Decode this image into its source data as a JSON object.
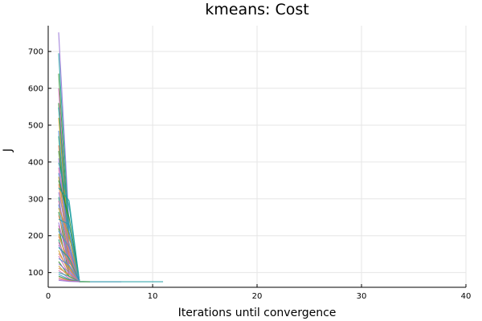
{
  "chart_data": {
    "type": "line",
    "title": "kmeans: Cost",
    "xlabel": "Iterations until convergence",
    "ylabel": "J",
    "xlim": [
      0,
      40
    ],
    "ylim": [
      60,
      770
    ],
    "xticks": [
      0,
      10,
      20,
      30,
      40
    ],
    "yticks": [
      100,
      200,
      300,
      400,
      500,
      600,
      700
    ],
    "grid": true,
    "legend": "none",
    "converged_cost": 75,
    "series": [
      {
        "color": "#9b7ad8",
        "x": [
          1,
          2,
          3,
          4,
          5,
          6,
          7
        ],
        "y": [
          752,
          230,
          75,
          75,
          75,
          75,
          75
        ]
      },
      {
        "color": "#27a0a6",
        "x": [
          1,
          2,
          3,
          4,
          5,
          6,
          7,
          8,
          9,
          10,
          11
        ],
        "y": [
          695,
          210,
          76,
          75,
          75,
          75,
          75,
          75,
          75,
          75,
          75
        ]
      },
      {
        "color": "#3c9a3c",
        "x": [
          1,
          2,
          3,
          4
        ],
        "y": [
          640,
          180,
          75,
          75
        ]
      },
      {
        "color": "#d46ab0",
        "x": [
          1,
          2,
          3
        ],
        "y": [
          600,
          150,
          75
        ]
      },
      {
        "color": "#2f8f2f",
        "x": [
          1,
          2,
          3
        ],
        "y": [
          560,
          120,
          75
        ]
      },
      {
        "color": "#1aa0a0",
        "x": [
          1,
          2,
          3
        ],
        "y": [
          548,
          200,
          75
        ]
      },
      {
        "color": "#c9a227",
        "x": [
          1,
          2,
          3
        ],
        "y": [
          520,
          175,
          75
        ]
      },
      {
        "color": "#4a8fd8",
        "x": [
          1,
          2,
          3
        ],
        "y": [
          485,
          160,
          75
        ]
      },
      {
        "color": "#2aa87a",
        "x": [
          1,
          2,
          3
        ],
        "y": [
          470,
          140,
          75
        ]
      },
      {
        "color": "#e0835a",
        "x": [
          1,
          2,
          3
        ],
        "y": [
          445,
          135,
          75
        ]
      },
      {
        "color": "#3c9a3c",
        "x": [
          1,
          2,
          3
        ],
        "y": [
          430,
          200,
          75
        ]
      },
      {
        "color": "#9b7ad8",
        "x": [
          1,
          2,
          3
        ],
        "y": [
          410,
          150,
          75
        ]
      },
      {
        "color": "#27a0a6",
        "x": [
          1,
          2,
          3
        ],
        "y": [
          398,
          280,
          75
        ]
      },
      {
        "color": "#d46ab0",
        "x": [
          1,
          2,
          3
        ],
        "y": [
          385,
          130,
          75
        ]
      },
      {
        "color": "#4a8fd8",
        "x": [
          1,
          2,
          3
        ],
        "y": [
          370,
          210,
          75
        ]
      },
      {
        "color": "#c9a227",
        "x": [
          1,
          2,
          3
        ],
        "y": [
          360,
          160,
          75
        ]
      },
      {
        "color": "#2f8f2f",
        "x": [
          1,
          2,
          3
        ],
        "y": [
          350,
          250,
          75
        ]
      },
      {
        "color": "#e0835a",
        "x": [
          1,
          2,
          3
        ],
        "y": [
          340,
          140,
          75
        ]
      },
      {
        "color": "#1aa0a0",
        "x": [
          1,
          2,
          3
        ],
        "y": [
          330,
          295,
          75
        ]
      },
      {
        "color": "#9b7ad8",
        "x": [
          1,
          2,
          3
        ],
        "y": [
          318,
          180,
          75
        ]
      },
      {
        "color": "#2aa87a",
        "x": [
          1,
          2,
          3
        ],
        "y": [
          305,
          130,
          75
        ]
      },
      {
        "color": "#d46ab0",
        "x": [
          1,
          2,
          3
        ],
        "y": [
          295,
          160,
          75
        ]
      },
      {
        "color": "#4a8fd8",
        "x": [
          1,
          2,
          3
        ],
        "y": [
          285,
          120,
          75
        ]
      },
      {
        "color": "#c9a227",
        "x": [
          1,
          2,
          3
        ],
        "y": [
          275,
          200,
          75
        ]
      },
      {
        "color": "#3c9a3c",
        "x": [
          1,
          2,
          3
        ],
        "y": [
          265,
          110,
          75
        ]
      },
      {
        "color": "#e0835a",
        "x": [
          1,
          2,
          3
        ],
        "y": [
          255,
          150,
          75
        ]
      },
      {
        "color": "#27a0a6",
        "x": [
          1,
          2,
          3
        ],
        "y": [
          245,
          230,
          75
        ]
      },
      {
        "color": "#9b7ad8",
        "x": [
          1,
          2,
          3
        ],
        "y": [
          236,
          120,
          75
        ]
      },
      {
        "color": "#d46ab0",
        "x": [
          1,
          2,
          3
        ],
        "y": [
          228,
          140,
          75
        ]
      },
      {
        "color": "#2f8f2f",
        "x": [
          1,
          2,
          3
        ],
        "y": [
          220,
          100,
          75
        ]
      },
      {
        "color": "#4a8fd8",
        "x": [
          1,
          2,
          3
        ],
        "y": [
          212,
          170,
          75
        ]
      },
      {
        "color": "#c9a227",
        "x": [
          1,
          2,
          3
        ],
        "y": [
          205,
          115,
          75
        ]
      },
      {
        "color": "#e0835a",
        "x": [
          1,
          2,
          3
        ],
        "y": [
          198,
          130,
          75
        ]
      },
      {
        "color": "#2aa87a",
        "x": [
          1,
          2,
          3
        ],
        "y": [
          190,
          95,
          75
        ]
      },
      {
        "color": "#d46ab0",
        "x": [
          1,
          2,
          3
        ],
        "y": [
          182,
          120,
          75
        ]
      },
      {
        "color": "#9b7ad8",
        "x": [
          1,
          2,
          3
        ],
        "y": [
          175,
          105,
          75
        ]
      },
      {
        "color": "#1aa0a0",
        "x": [
          1,
          2,
          3
        ],
        "y": [
          168,
          140,
          75
        ]
      },
      {
        "color": "#c9a227",
        "x": [
          1,
          2,
          3
        ],
        "y": [
          160,
          100,
          75
        ]
      },
      {
        "color": "#e0835a",
        "x": [
          1,
          2,
          3
        ],
        "y": [
          152,
          110,
          75
        ]
      },
      {
        "color": "#d46ab0",
        "x": [
          1,
          2,
          3
        ],
        "y": [
          145,
          95,
          75
        ]
      },
      {
        "color": "#4a8fd8",
        "x": [
          1,
          2,
          3
        ],
        "y": [
          138,
          120,
          75
        ]
      },
      {
        "color": "#2f8f2f",
        "x": [
          1,
          2,
          3
        ],
        "y": [
          130,
          90,
          75
        ]
      },
      {
        "color": "#9b7ad8",
        "x": [
          1,
          2,
          3
        ],
        "y": [
          124,
          100,
          75
        ]
      },
      {
        "color": "#c9a227",
        "x": [
          1,
          2,
          3
        ],
        "y": [
          118,
          88,
          75
        ]
      },
      {
        "color": "#e0835a",
        "x": [
          1,
          2,
          3
        ],
        "y": [
          112,
          95,
          75
        ]
      },
      {
        "color": "#d46ab0",
        "x": [
          1,
          2,
          3
        ],
        "y": [
          106,
          84,
          75
        ]
      },
      {
        "color": "#27a0a6",
        "x": [
          1,
          2,
          3
        ],
        "y": [
          100,
          90,
          75
        ]
      },
      {
        "color": "#4a8fd8",
        "x": [
          1,
          2,
          3
        ],
        "y": [
          95,
          82,
          75
        ]
      },
      {
        "color": "#3c9a3c",
        "x": [
          1,
          2,
          3
        ],
        "y": [
          90,
          80,
          75
        ]
      },
      {
        "color": "#e0835a",
        "x": [
          1,
          2,
          3
        ],
        "y": [
          86,
          78,
          75
        ]
      },
      {
        "color": "#d46ab0",
        "x": [
          1,
          2,
          3
        ],
        "y": [
          82,
          77,
          75
        ]
      },
      {
        "color": "#9b7ad8",
        "x": [
          1,
          2,
          3
        ],
        "y": [
          79,
          76,
          75
        ]
      }
    ]
  }
}
